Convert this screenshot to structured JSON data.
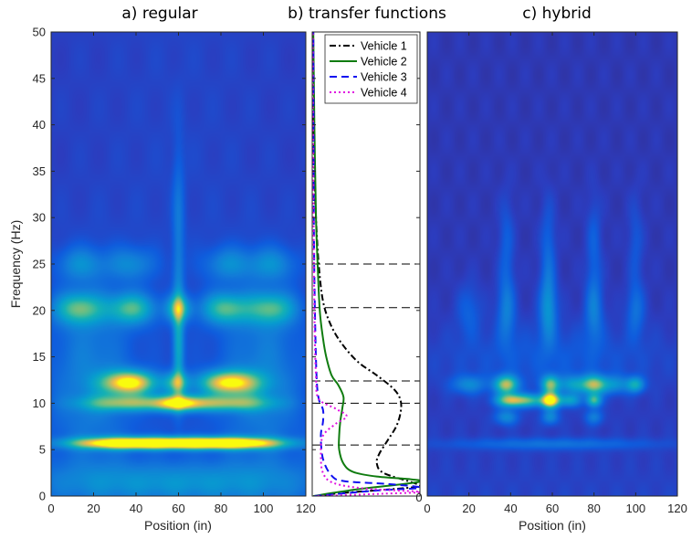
{
  "chart_data": [
    {
      "type": "heatmap",
      "title": "a) regular",
      "xlabel": "Position (in)",
      "ylabel": "Frequency (Hz)",
      "xlim": [
        0,
        120
      ],
      "ylim": [
        0,
        50
      ],
      "xticks": [
        0,
        20,
        40,
        60,
        80,
        100,
        120
      ],
      "yticks": [
        0,
        5,
        10,
        15,
        20,
        25,
        30,
        35,
        40,
        45,
        50
      ],
      "colormap": "parula",
      "hotspots": [
        {
          "x": 37,
          "y": 12.2,
          "sx": 9,
          "sy": 0.9,
          "v": 0.85
        },
        {
          "x": 84,
          "y": 12.2,
          "sx": 10,
          "sy": 0.9,
          "v": 0.8
        },
        {
          "x": 59,
          "y": 12.2,
          "sx": 4,
          "sy": 0.8,
          "v": 0.45
        },
        {
          "x": 60,
          "y": 10.0,
          "sx": 9,
          "sy": 0.6,
          "v": 0.72
        },
        {
          "x": 35,
          "y": 10.0,
          "sx": 14,
          "sy": 0.6,
          "v": 0.5
        },
        {
          "x": 84,
          "y": 10.0,
          "sx": 14,
          "sy": 0.6,
          "v": 0.5
        },
        {
          "x": 60,
          "y": 5.7,
          "sx": 24,
          "sy": 0.45,
          "v": 1.0
        },
        {
          "x": 30,
          "y": 5.7,
          "sx": 16,
          "sy": 0.45,
          "v": 0.55
        },
        {
          "x": 90,
          "y": 5.7,
          "sx": 16,
          "sy": 0.45,
          "v": 0.55
        },
        {
          "x": 13,
          "y": 20.2,
          "sx": 8,
          "sy": 1.2,
          "v": 0.5
        },
        {
          "x": 38,
          "y": 20.2,
          "sx": 8,
          "sy": 1.2,
          "v": 0.5
        },
        {
          "x": 60,
          "y": 20.2,
          "sx": 4,
          "sy": 1.0,
          "v": 0.5
        },
        {
          "x": 82,
          "y": 20.2,
          "sx": 8,
          "sy": 1.2,
          "v": 0.5
        },
        {
          "x": 104,
          "y": 20.2,
          "sx": 8,
          "sy": 1.2,
          "v": 0.45
        },
        {
          "x": 60,
          "y": 16.0,
          "sx": 1.8,
          "sy": 4,
          "v": 0.35
        },
        {
          "x": 60,
          "y": 28.0,
          "sx": 2.0,
          "sy": 7,
          "v": 0.2
        },
        {
          "x": 14,
          "y": 25.0,
          "sx": 8,
          "sy": 1.3,
          "v": 0.25
        },
        {
          "x": 38,
          "y": 25.0,
          "sx": 8,
          "sy": 1.3,
          "v": 0.25
        },
        {
          "x": 83,
          "y": 25.0,
          "sx": 8,
          "sy": 1.3,
          "v": 0.25
        },
        {
          "x": 104,
          "y": 25.0,
          "sx": 8,
          "sy": 1.3,
          "v": 0.25
        },
        {
          "x": 18,
          "y": 13.0,
          "sx": 14,
          "sy": 7,
          "v": 0.22
        },
        {
          "x": 100,
          "y": 13.0,
          "sx": 14,
          "sy": 7,
          "v": 0.22
        },
        {
          "x": 60,
          "y": 1.5,
          "sx": 50,
          "sy": 1.5,
          "v": 0.25
        }
      ]
    },
    {
      "type": "line",
      "title": "b) transfer functions",
      "ylim": [
        0,
        50
      ],
      "xlim": [
        0,
        1
      ],
      "xticks": [
        0
      ],
      "reference_lines_y": [
        5.5,
        10.0,
        12.4,
        20.3,
        25.0
      ],
      "legend_position": "top-right",
      "series": [
        {
          "name": "Vehicle 1",
          "color": "#000000",
          "dash": "7 3 2 3",
          "points": [
            [
              0.03,
              0
            ],
            [
              0.25,
              0.3
            ],
            [
              0.9,
              0.9
            ],
            [
              1.0,
              1.1
            ],
            [
              0.92,
              1.5
            ],
            [
              0.66,
              2.5
            ],
            [
              0.6,
              3.5
            ],
            [
              0.62,
              4.5
            ],
            [
              0.7,
              6.0
            ],
            [
              0.78,
              7.5
            ],
            [
              0.82,
              9.0
            ],
            [
              0.82,
              10.3
            ],
            [
              0.76,
              11.5
            ],
            [
              0.6,
              13.0
            ],
            [
              0.42,
              14.5
            ],
            [
              0.27,
              16.5
            ],
            [
              0.17,
              18.5
            ],
            [
              0.1,
              21.0
            ],
            [
              0.06,
              25.0
            ],
            [
              0.035,
              30.0
            ],
            [
              0.02,
              35.0
            ],
            [
              0.01,
              42.0
            ],
            [
              0.005,
              50.0
            ]
          ]
        },
        {
          "name": "Vehicle 2",
          "color": "#107c10",
          "dash": "",
          "points": [
            [
              0.01,
              0
            ],
            [
              0.4,
              0.7
            ],
            [
              0.98,
              1.5
            ],
            [
              0.92,
              1.8
            ],
            [
              0.6,
              2.1
            ],
            [
              0.38,
              2.6
            ],
            [
              0.29,
              3.5
            ],
            [
              0.25,
              5.0
            ],
            [
              0.25,
              6.5
            ],
            [
              0.26,
              8.0
            ],
            [
              0.28,
              9.5
            ],
            [
              0.29,
              10.7
            ],
            [
              0.24,
              12.0
            ],
            [
              0.18,
              13.0
            ],
            [
              0.13,
              15.0
            ],
            [
              0.1,
              17.0
            ],
            [
              0.07,
              20.0
            ],
            [
              0.05,
              25.0
            ],
            [
              0.035,
              30.0
            ],
            [
              0.02,
              40.0
            ],
            [
              0.01,
              50.0
            ]
          ]
        },
        {
          "name": "Vehicle 3",
          "color": "#1010f0",
          "dash": "8 5",
          "points": [
            [
              0.02,
              0
            ],
            [
              0.6,
              0.6
            ],
            [
              1.0,
              0.9
            ],
            [
              0.7,
              1.3
            ],
            [
              0.3,
              1.6
            ],
            [
              0.18,
              2.2
            ],
            [
              0.1,
              4.0
            ],
            [
              0.08,
              6.5
            ],
            [
              0.1,
              8.0
            ],
            [
              0.1,
              9.3
            ],
            [
              0.06,
              10.5
            ],
            [
              0.04,
              13.0
            ],
            [
              0.025,
              20.0
            ],
            [
              0.015,
              30.0
            ],
            [
              0.01,
              50.0
            ]
          ]
        },
        {
          "name": "Vehicle 4",
          "color": "#e010e0",
          "dash": "2 3",
          "points": [
            [
              0.05,
              0
            ],
            [
              0.65,
              0.25
            ],
            [
              1.0,
              0.45
            ],
            [
              0.5,
              0.8
            ],
            [
              0.2,
              1.4
            ],
            [
              0.1,
              2.5
            ],
            [
              0.08,
              4.5
            ],
            [
              0.1,
              6.5
            ],
            [
              0.22,
              7.8
            ],
            [
              0.32,
              8.6
            ],
            [
              0.22,
              9.4
            ],
            [
              0.06,
              10.5
            ],
            [
              0.035,
              13.0
            ],
            [
              0.02,
              20.0
            ],
            [
              0.01,
              35.0
            ],
            [
              0.005,
              50.0
            ]
          ]
        }
      ]
    },
    {
      "type": "heatmap",
      "title": "c) hybrid",
      "xlabel": "Position (in)",
      "xlim": [
        0,
        120
      ],
      "ylim": [
        0,
        50
      ],
      "xticks": [
        0,
        20,
        40,
        60,
        80,
        100,
        120
      ],
      "colormap": "parula",
      "hotspots": [
        {
          "x": 38,
          "y": 12.0,
          "sx": 4,
          "sy": 0.7,
          "v": 0.7
        },
        {
          "x": 59,
          "y": 12.0,
          "sx": 3,
          "sy": 0.7,
          "v": 0.6
        },
        {
          "x": 80,
          "y": 12.0,
          "sx": 4,
          "sy": 0.7,
          "v": 0.62
        },
        {
          "x": 100,
          "y": 12.0,
          "sx": 3,
          "sy": 0.6,
          "v": 0.42
        },
        {
          "x": 20,
          "y": 12.0,
          "sx": 6,
          "sy": 0.7,
          "v": 0.28
        },
        {
          "x": 70,
          "y": 12.0,
          "sx": 5,
          "sy": 0.7,
          "v": 0.35
        },
        {
          "x": 90,
          "y": 12.0,
          "sx": 5,
          "sy": 0.7,
          "v": 0.3
        },
        {
          "x": 59,
          "y": 10.3,
          "sx": 3,
          "sy": 0.55,
          "v": 0.95
        },
        {
          "x": 40,
          "y": 10.3,
          "sx": 5,
          "sy": 0.5,
          "v": 0.7
        },
        {
          "x": 80,
          "y": 10.3,
          "sx": 2.5,
          "sy": 0.5,
          "v": 0.55
        },
        {
          "x": 50,
          "y": 10.3,
          "sx": 5,
          "sy": 0.5,
          "v": 0.45
        },
        {
          "x": 68,
          "y": 10.3,
          "sx": 4,
          "sy": 0.5,
          "v": 0.4
        },
        {
          "x": 38,
          "y": 8.5,
          "sx": 4,
          "sy": 0.6,
          "v": 0.3
        },
        {
          "x": 59,
          "y": 8.5,
          "sx": 3,
          "sy": 0.6,
          "v": 0.3
        },
        {
          "x": 80,
          "y": 8.5,
          "sx": 3,
          "sy": 0.6,
          "v": 0.25
        },
        {
          "x": 60,
          "y": 5.6,
          "sx": 35,
          "sy": 0.45,
          "v": 0.2
        },
        {
          "x": 38,
          "y": 20.0,
          "sx": 3,
          "sy": 2.5,
          "v": 0.25
        },
        {
          "x": 58,
          "y": 20.0,
          "sx": 3,
          "sy": 2.5,
          "v": 0.3
        },
        {
          "x": 80,
          "y": 20.0,
          "sx": 3,
          "sy": 2.5,
          "v": 0.25
        },
        {
          "x": 100,
          "y": 20.0,
          "sx": 3,
          "sy": 2.0,
          "v": 0.2
        },
        {
          "x": 20,
          "y": 20.0,
          "sx": 4,
          "sy": 2.0,
          "v": 0.15
        },
        {
          "x": 58,
          "y": 26.0,
          "sx": 2.5,
          "sy": 4,
          "v": 0.18
        },
        {
          "x": 38,
          "y": 27.0,
          "sx": 2.5,
          "sy": 3.5,
          "v": 0.15
        },
        {
          "x": 80,
          "y": 27.0,
          "sx": 2.5,
          "sy": 3.5,
          "v": 0.15
        },
        {
          "x": 100,
          "y": 27.0,
          "sx": 2.5,
          "sy": 3.5,
          "v": 0.12
        },
        {
          "x": 60,
          "y": 15.0,
          "sx": 40,
          "sy": 2.5,
          "v": 0.12
        }
      ]
    }
  ]
}
